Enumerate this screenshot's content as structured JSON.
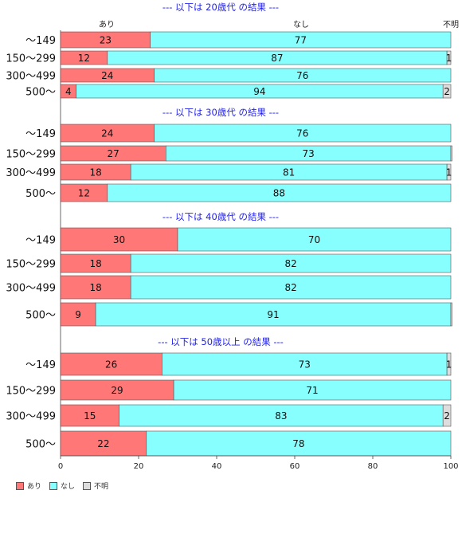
{
  "chart_data": {
    "type": "bar",
    "orientation": "horizontal-stacked-percent",
    "series_names": [
      "あり",
      "なし",
      "不明"
    ],
    "colors": [
      "#ff7777",
      "#88ffff",
      "#dddddd"
    ],
    "column_headers": [
      "あり",
      "なし",
      "不明"
    ],
    "xlim": [
      0,
      100
    ],
    "xticks": [
      "0",
      "20",
      "40",
      "60",
      "80",
      "100"
    ],
    "panels": [
      {
        "title": "--- 以下は 20歳代 の結果 ---",
        "categories": [
          "～149",
          "150～299",
          "300～499",
          "500～"
        ],
        "values": [
          [
            23,
            77,
            0
          ],
          [
            12,
            87,
            1
          ],
          [
            24,
            76,
            0
          ],
          [
            4,
            94,
            2
          ]
        ],
        "labels": [
          [
            "23",
            "77",
            ""
          ],
          [
            "12",
            "87",
            "1"
          ],
          [
            "24",
            "76",
            ""
          ],
          [
            "4",
            "94",
            "2"
          ]
        ]
      },
      {
        "title": "--- 以下は 30歳代 の結果 ---",
        "categories": [
          "～149",
          "150～299",
          "300～499",
          "500～"
        ],
        "values": [
          [
            24,
            76,
            0
          ],
          [
            27,
            73,
            0.3
          ],
          [
            18,
            81,
            1
          ],
          [
            12,
            88,
            0
          ]
        ],
        "labels": [
          [
            "24",
            "76",
            ""
          ],
          [
            "27",
            "73",
            ""
          ],
          [
            "18",
            "81",
            "1"
          ],
          [
            "12",
            "88",
            ""
          ]
        ]
      },
      {
        "title": "--- 以下は 40歳代 の結果 ---",
        "categories": [
          "～149",
          "150～299",
          "300～499",
          "500～"
        ],
        "values": [
          [
            30,
            70,
            0
          ],
          [
            18,
            82,
            0
          ],
          [
            18,
            82,
            0
          ],
          [
            9,
            91,
            0.3
          ]
        ],
        "labels": [
          [
            "30",
            "70",
            ""
          ],
          [
            "18",
            "82",
            ""
          ],
          [
            "18",
            "82",
            ""
          ],
          [
            "9",
            "91",
            ""
          ]
        ]
      },
      {
        "title": "--- 以下は 50歳以上 の結果 ---",
        "categories": [
          "～149",
          "150～299",
          "300～499",
          "500～"
        ],
        "values": [
          [
            26,
            73,
            1
          ],
          [
            29,
            71,
            0
          ],
          [
            15,
            83,
            2
          ],
          [
            22,
            78,
            0
          ]
        ],
        "labels": [
          [
            "26",
            "73",
            "1"
          ],
          [
            "29",
            "71",
            ""
          ],
          [
            "15",
            "83",
            "2"
          ],
          [
            "22",
            "78",
            ""
          ]
        ]
      }
    ],
    "legend": {
      "position": "bottom-left",
      "entries": [
        "あり",
        "なし",
        "不明"
      ]
    }
  }
}
